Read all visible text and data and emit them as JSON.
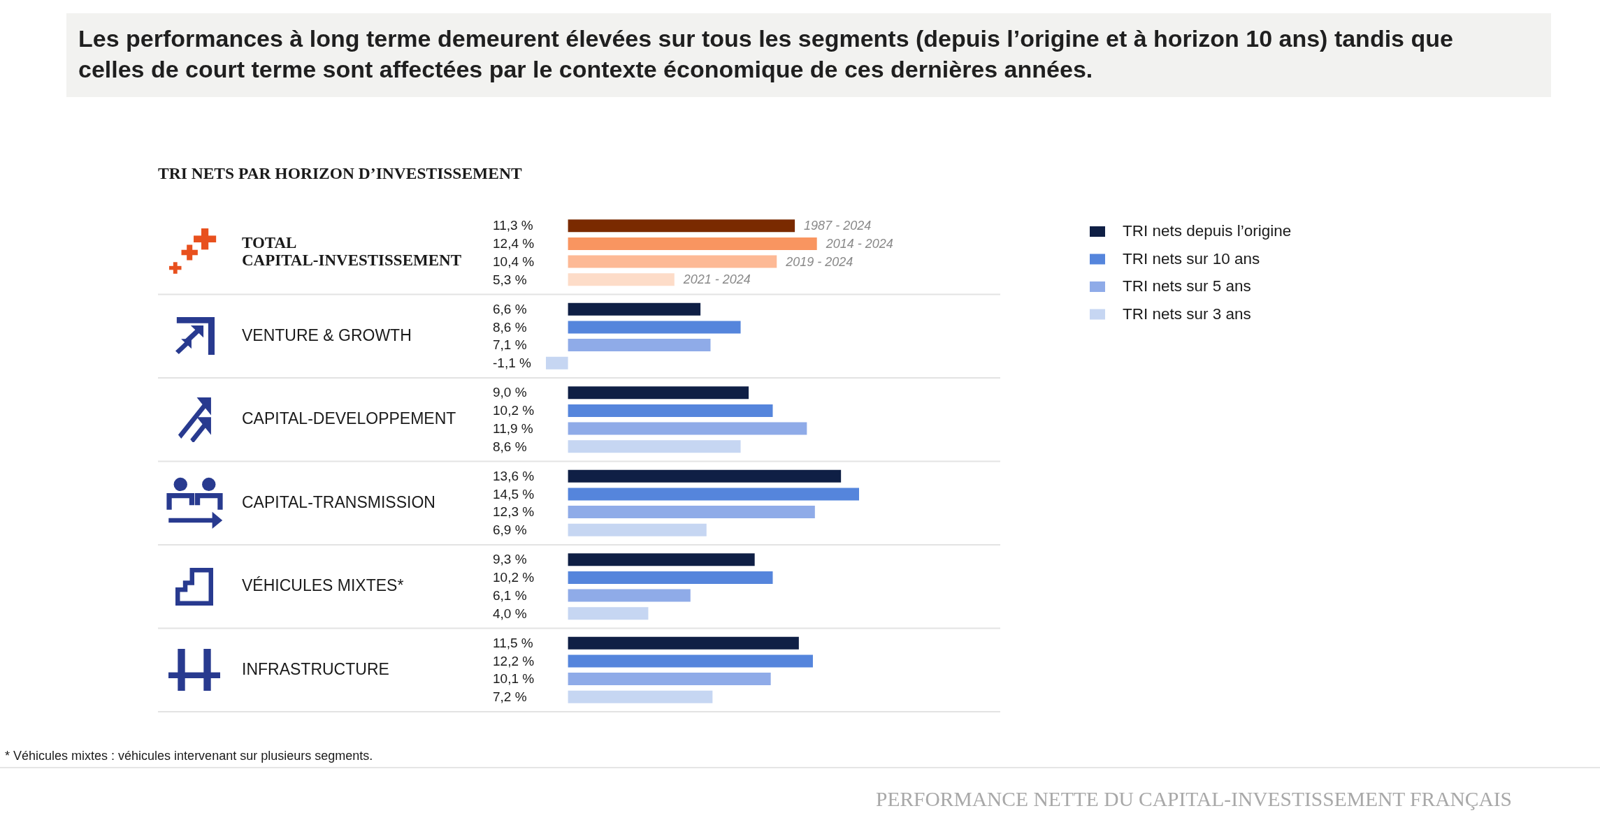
{
  "chart_data": {
    "type": "bar",
    "orientation": "horizontal",
    "title": "Les performances à long terme demeurent élevées sur tous les segments (depuis l’origine et à horizon 10 ans) tandis que celles de court terme sont affectées par le contexte économique de ces dernières années.",
    "subtitle": "TRI NETS PAR HORIZON D’INVESTISSEMENT",
    "categories": [
      "TOTAL CAPITAL-INVESTISSEMENT",
      "VENTURE & GROWTH",
      "CAPITAL-DEVELOPPEMENT",
      "CAPITAL-TRANSMISSION",
      "VÉHICULES MIXTES*",
      "INFRASTRUCTURE"
    ],
    "series": [
      {
        "name": "TRI nets depuis l’origine",
        "color": "#0f1f45",
        "colors": [
          "#7a2a00",
          "#0f1f45",
          "#0f1f45",
          "#0f1f45",
          "#0f1f45",
          "#0f1f45"
        ],
        "values": [
          11.3,
          6.6,
          9.0,
          13.6,
          9.3,
          11.5
        ],
        "value_labels": [
          "11,3 %",
          "6,6 %",
          "9,0 %",
          "13,6 %",
          "9,3 %",
          "11,5 %"
        ]
      },
      {
        "name": "TRI nets sur 10 ans",
        "color": "#5585dc",
        "colors": [
          "#f99560",
          "#5585dc",
          "#5585dc",
          "#5585dc",
          "#5585dc",
          "#5585dc"
        ],
        "values": [
          12.4,
          8.6,
          10.2,
          14.5,
          10.2,
          12.2
        ],
        "value_labels": [
          "12,4 %",
          "8,6 %",
          "10,2 %",
          "14,5 %",
          "10,2 %",
          "12,2 %"
        ]
      },
      {
        "name": "TRI nets sur 5 ans",
        "color": "#8fabe8",
        "colors": [
          "#fdb995",
          "#8fabe8",
          "#8fabe8",
          "#8fabe8",
          "#8fabe8",
          "#8fabe8"
        ],
        "values": [
          10.4,
          7.1,
          11.9,
          12.3,
          6.1,
          10.1
        ],
        "value_labels": [
          "10,4 %",
          "7,1 %",
          "11,9 %",
          "12,3 %",
          "6,1 %",
          "10,1 %"
        ]
      },
      {
        "name": "TRI nets sur 3 ans",
        "color": "#c6d6f2",
        "colors": [
          "#fddcc8",
          "#c6d6f2",
          "#c6d6f2",
          "#c6d6f2",
          "#c6d6f2",
          "#c6d6f2"
        ],
        "values": [
          5.3,
          -1.1,
          8.6,
          6.9,
          4.0,
          7.2
        ],
        "value_labels": [
          "5,3 %",
          "-1,1 %",
          "8,6 %",
          "6,9 %",
          "4,0 %",
          "7,2 %"
        ]
      }
    ],
    "grid": "y",
    "legend": "top right",
    "annotations": [
      {
        "text": "1987 - 2024",
        "x": 11.3,
        "y": "TOTAL CAPITAL-INVESTISSEMENT"
      },
      {
        "text": "2014 - 2024",
        "x": 12.4,
        "y": "TOTAL CAPITAL-INVESTISSEMENT"
      },
      {
        "text": "2019 - 2024",
        "x": 10.4,
        "y": "TOTAL CAPITAL-INVESTISSEMENT"
      },
      {
        "text": "2021 - 2024",
        "x": 5.3,
        "y": "TOTAL CAPITAL-INVESTISSEMENT"
      },
      "* Véhicules mixtes : véhicules intervenant sur plusieurs segments.",
      "PERFORMANCE NETTE DU CAPITAL-INVESTISSEMENT FRANÇAIS"
    ]
  }
}
